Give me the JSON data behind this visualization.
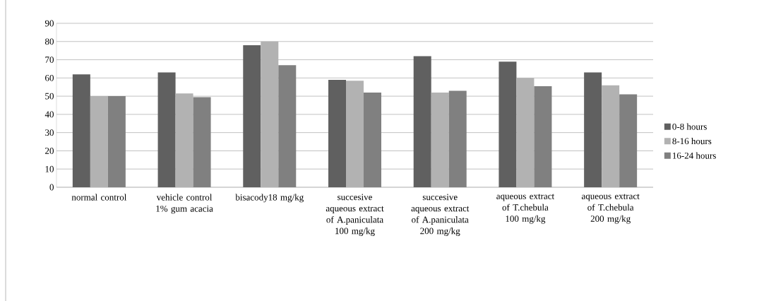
{
  "chart_data": {
    "type": "bar",
    "categories": [
      "normal control",
      "vehicle control 1% gum acacia",
      "bisacody18 mg/kg",
      "succesive aqueous extract of A.paniculata 100 mg/kg",
      "succesive aqueous extract of A.paniculata 200 mg/kg",
      "aqueous extract of T.chebula 100 mg/kg",
      "aqueous extract of T.chebula 200 mg/kg"
    ],
    "series": [
      {
        "name": "0-8 hours",
        "color": "#606060",
        "values": [
          62,
          63,
          78,
          59,
          72,
          69,
          63
        ]
      },
      {
        "name": "8-16 hours",
        "color": "#b2b2b2",
        "values": [
          50,
          51.5,
          80,
          58.5,
          52,
          60,
          56
        ]
      },
      {
        "name": "16-24 hours",
        "color": "#808080",
        "values": [
          50,
          49.5,
          67,
          52,
          53,
          55.5,
          51
        ]
      }
    ],
    "ylim": [
      0,
      90
    ],
    "yticks": [
      0,
      10,
      20,
      30,
      40,
      50,
      60,
      70,
      80,
      90
    ],
    "grid": "y",
    "legend": "right"
  }
}
